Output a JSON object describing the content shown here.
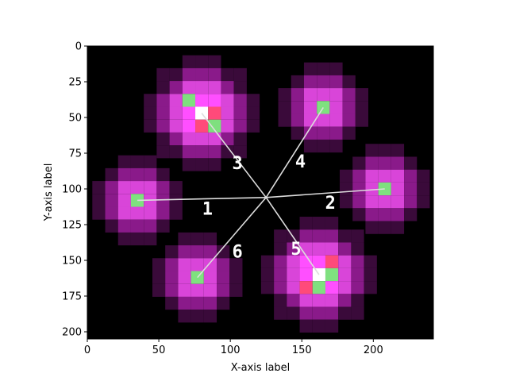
{
  "chart_data": {
    "type": "heatmap",
    "xlabel": "X-axis label",
    "ylabel": "Y-axis label",
    "xlim": [
      0,
      242
    ],
    "ylim": [
      205,
      0
    ],
    "x_ticks": [
      0,
      50,
      100,
      150,
      200
    ],
    "y_ticks": [
      0,
      25,
      50,
      75,
      100,
      125,
      150,
      175,
      200
    ],
    "background": "#000000",
    "center": {
      "x": 125,
      "y": 106
    },
    "spots": [
      {
        "x": 80,
        "y": 47,
        "size": 3
      },
      {
        "x": 165,
        "y": 43,
        "size": 2
      },
      {
        "x": 35,
        "y": 108,
        "size": 2
      },
      {
        "x": 208,
        "y": 100,
        "size": 2
      },
      {
        "x": 77,
        "y": 162,
        "size": 2
      },
      {
        "x": 162,
        "y": 160,
        "size": 3
      }
    ],
    "rays": [
      {
        "x": 35,
        "y": 108
      },
      {
        "x": 208,
        "y": 100
      },
      {
        "x": 80,
        "y": 47
      },
      {
        "x": 165,
        "y": 43
      },
      {
        "x": 162,
        "y": 160
      },
      {
        "x": 77,
        "y": 162
      }
    ],
    "annotations": [
      {
        "text": "1",
        "x": 84,
        "y": 118,
        "color": "#ffffff"
      },
      {
        "text": "2",
        "x": 170,
        "y": 114,
        "color": "#ffffff"
      },
      {
        "text": "3",
        "x": 105,
        "y": 86,
        "color": "#ffffff"
      },
      {
        "text": "4",
        "x": 149,
        "y": 85,
        "color": "#ffffff"
      },
      {
        "text": "5",
        "x": 146,
        "y": 146,
        "color": "#4caf50"
      },
      {
        "text": "6",
        "x": 105,
        "y": 148,
        "color": "#ffffff"
      }
    ],
    "colors": {
      "outer": "#3a0a3a",
      "mid": "#8a1a8a",
      "inner": "#d945d9",
      "core_magenta": "#ff4fff",
      "core_red": "#ff4a7a",
      "core_green": "#7fe07f",
      "core_white": "#ffffff",
      "ray": "#dddddd"
    }
  }
}
